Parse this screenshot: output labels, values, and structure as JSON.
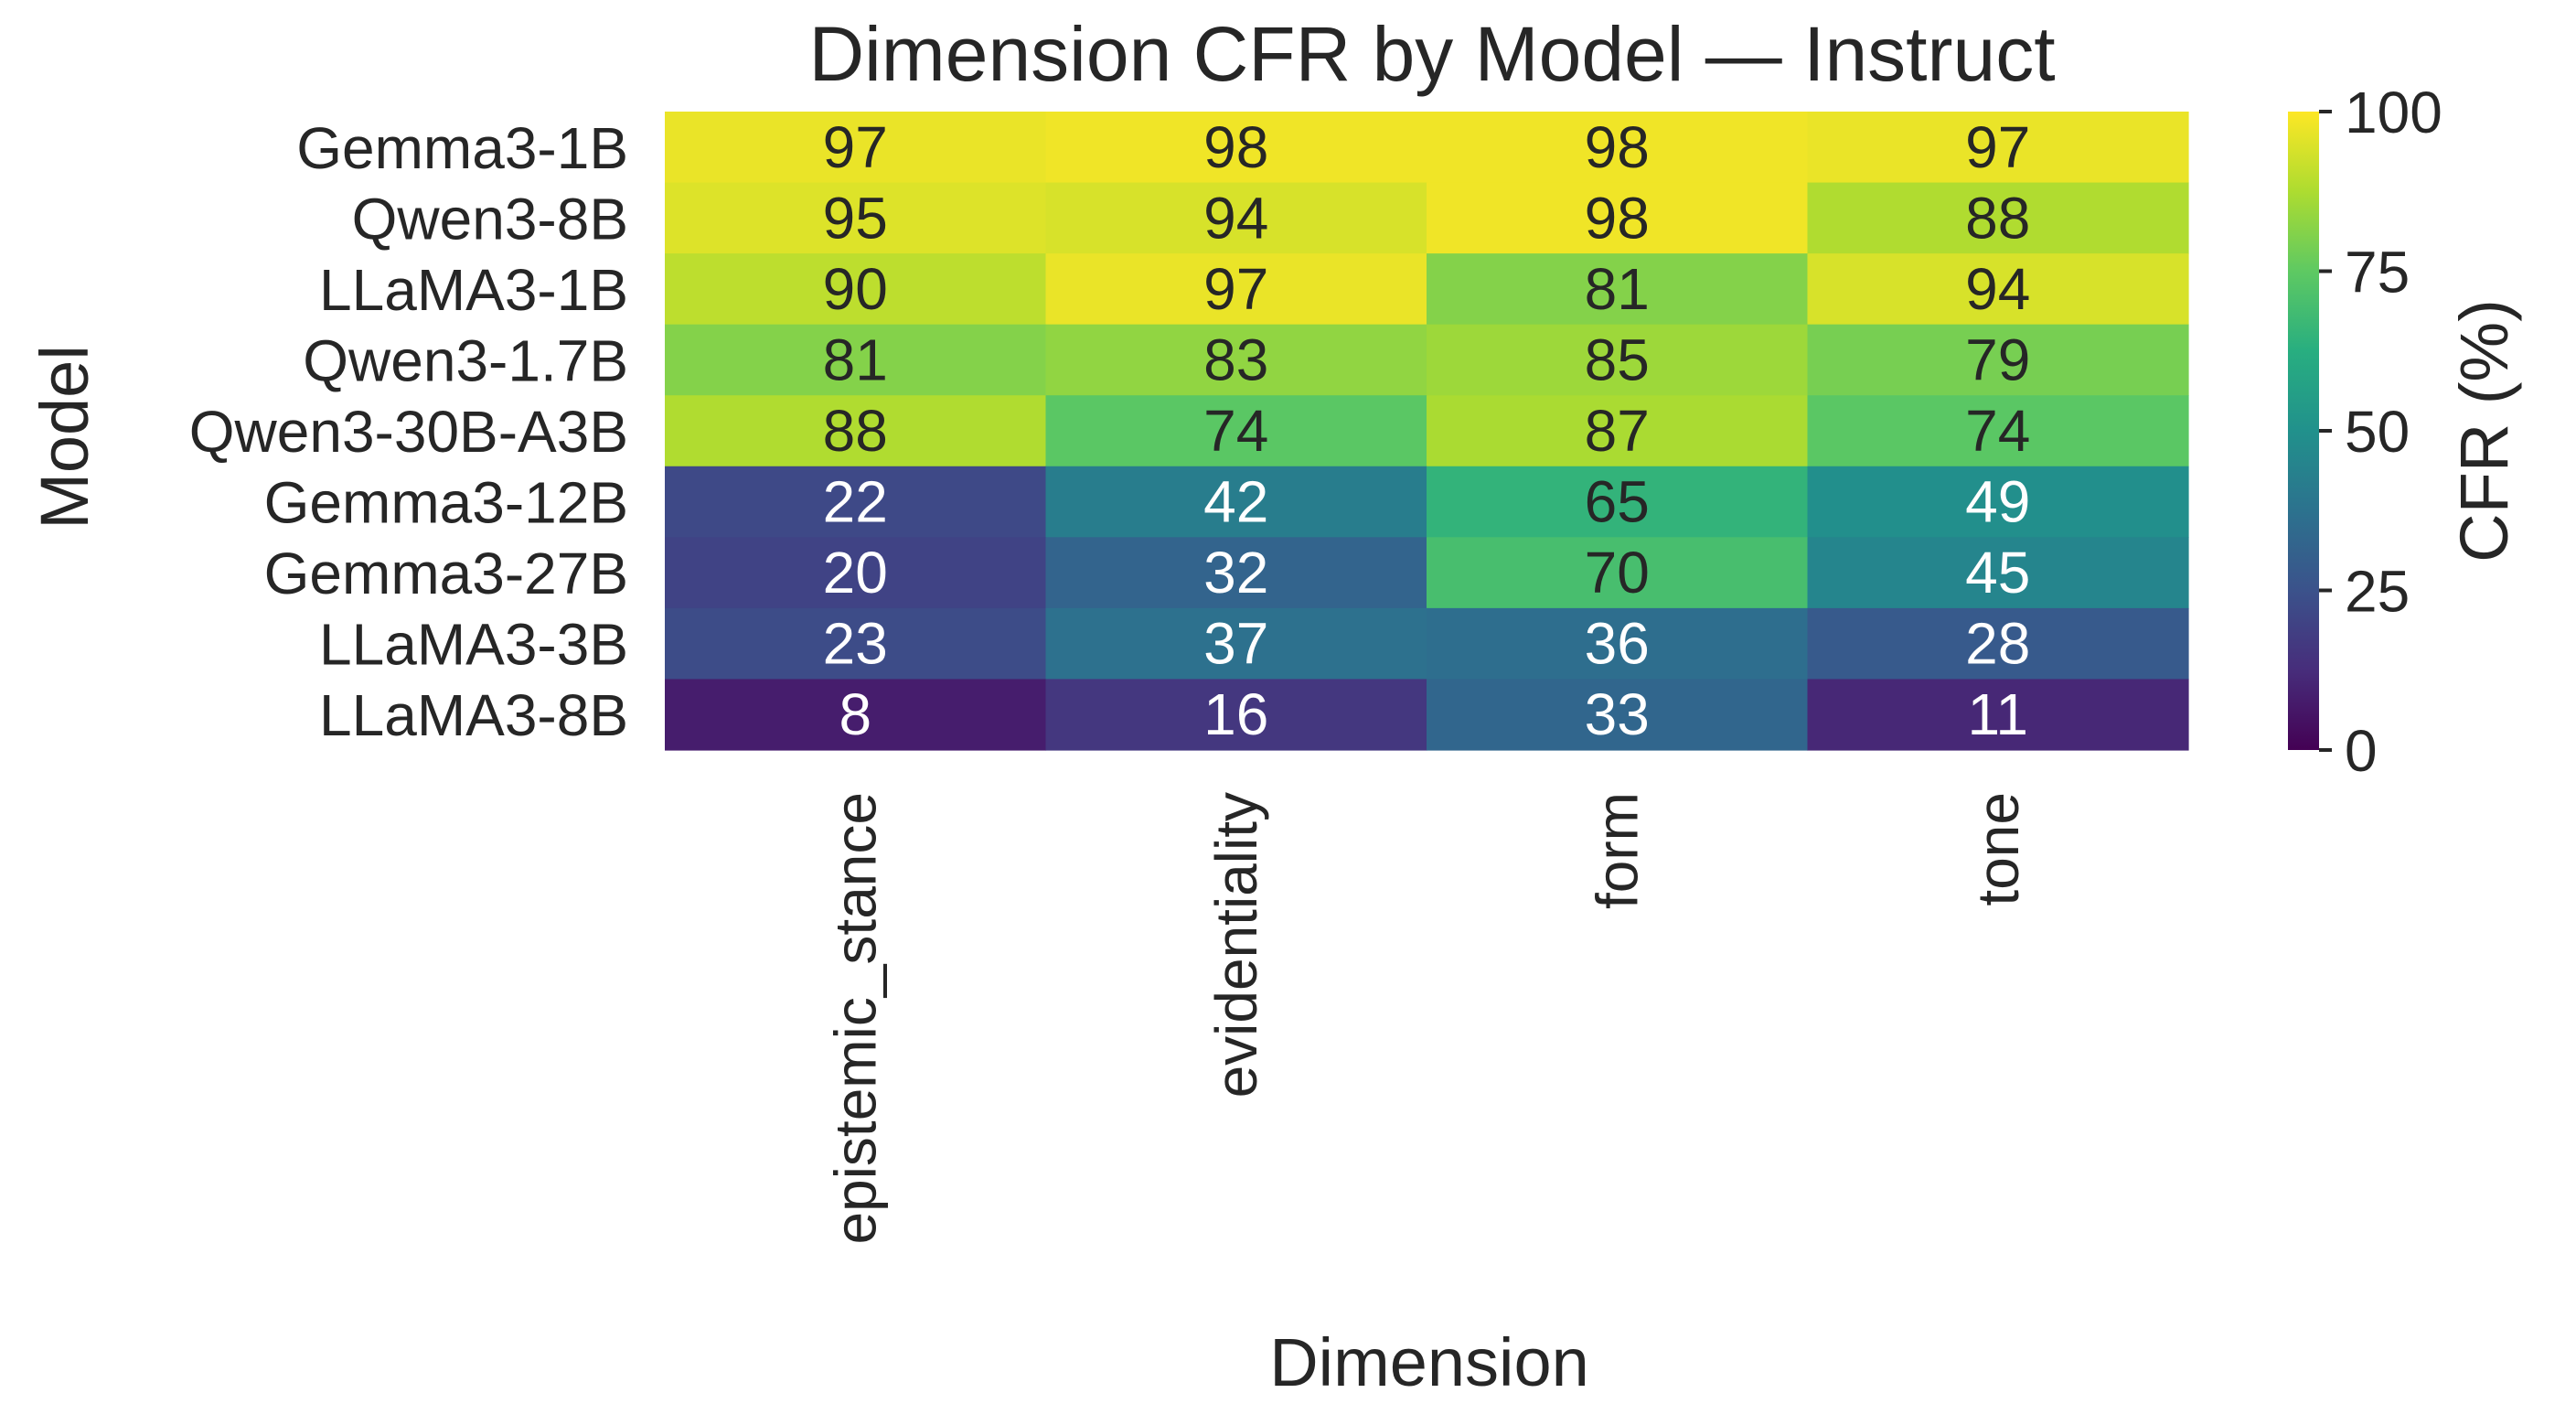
{
  "chart_data": {
    "type": "heatmap",
    "title": "Dimension CFR by Model — Instruct",
    "xlabel": "Dimension",
    "ylabel": "Model",
    "x_categories": [
      "epistemic_stance",
      "evidentiality",
      "form",
      "tone"
    ],
    "y_categories": [
      "Gemma3-1B",
      "Qwen3-8B",
      "LLaMA3-1B",
      "Qwen3-1.7B",
      "Qwen3-30B-A3B",
      "Gemma3-12B",
      "Gemma3-27B",
      "LLaMA3-3B",
      "LLaMA3-8B"
    ],
    "values": [
      [
        97,
        98,
        98,
        97
      ],
      [
        95,
        94,
        98,
        88
      ],
      [
        90,
        97,
        81,
        94
      ],
      [
        81,
        83,
        85,
        79
      ],
      [
        88,
        74,
        87,
        74
      ],
      [
        22,
        42,
        65,
        49
      ],
      [
        20,
        32,
        70,
        45
      ],
      [
        23,
        37,
        36,
        28
      ],
      [
        8,
        16,
        33,
        11
      ]
    ],
    "colorbar": {
      "label": "CFR (%)",
      "range": [
        0,
        100
      ],
      "ticks": [
        0,
        25,
        50,
        75,
        100
      ],
      "colormap": "viridis"
    }
  }
}
